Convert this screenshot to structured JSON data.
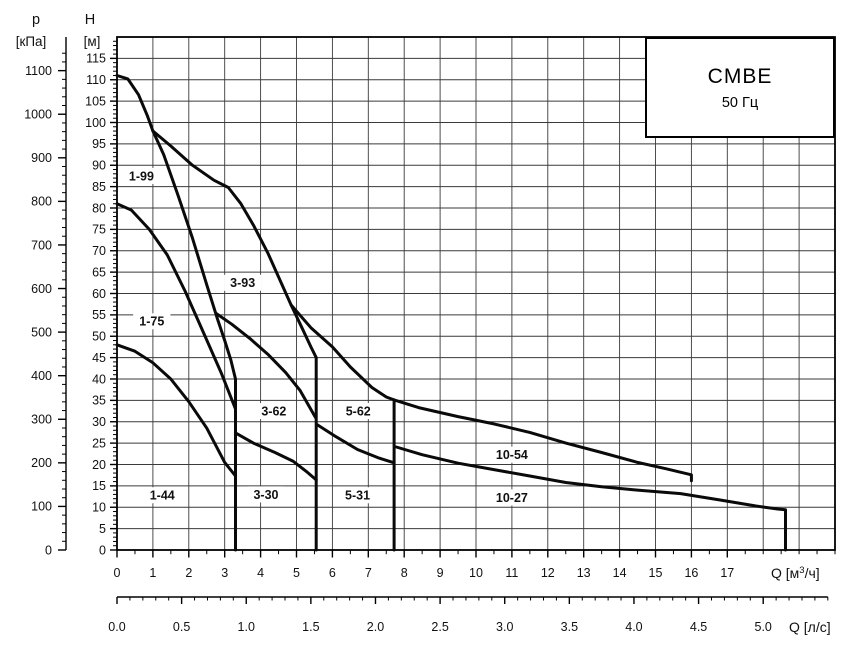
{
  "title": {
    "model": "CMBE",
    "frequency": "50 Гц"
  },
  "axes": {
    "pressure": {
      "symbol": "p",
      "unit": "[кПа]",
      "tick_labels": [
        0,
        100,
        200,
        300,
        400,
        500,
        600,
        700,
        800,
        900,
        1000,
        1100
      ]
    },
    "head": {
      "symbol": "H",
      "unit": "[м]",
      "tick_labels": [
        0,
        5,
        10,
        15,
        20,
        25,
        30,
        35,
        40,
        45,
        50,
        55,
        60,
        65,
        70,
        75,
        80,
        85,
        90,
        95,
        100,
        105,
        110,
        115
      ]
    },
    "flow_m3h": {
      "symbol": "Q",
      "unit_prefix": "[м",
      "unit_sup": "3",
      "unit_suffix": "/ч]",
      "tick_labels": [
        0,
        1,
        2,
        3,
        4,
        5,
        6,
        7,
        8,
        9,
        10,
        11,
        12,
        13,
        14,
        15,
        16,
        17
      ]
    },
    "flow_ls": {
      "symbol": "Q",
      "unit": "[л/с]",
      "tick_labels": [
        "0.0",
        "0.5",
        "1.0",
        "1.5",
        "2.0",
        "2.5",
        "3.0",
        "3.5",
        "4.0",
        "4.5",
        "5.0"
      ]
    }
  },
  "chart_data": {
    "type": "line",
    "title": "CMBE 50 Гц",
    "xlabel": "Q [м3/ч]",
    "x2label": "Q [л/с]",
    "ylabel": "H [м]",
    "y2label": "p [кПа]",
    "xlim": [
      0,
      20
    ],
    "ylim": [
      0,
      120
    ],
    "grid": {
      "x_step_m3h": 1,
      "y_step_m": 5,
      "on": true
    },
    "units": {
      "kpa_per_m": 9.81,
      "ls_per_m3h": 0.2778
    },
    "series": [
      {
        "name": "1-99",
        "points": [
          [
            0,
            111
          ],
          [
            0.3,
            110.2
          ],
          [
            0.6,
            106.5
          ],
          [
            0.85,
            101.5
          ],
          [
            1,
            98
          ],
          [
            1.3,
            92.5
          ],
          [
            1.7,
            83
          ],
          [
            2.1,
            73
          ],
          [
            2.5,
            62
          ],
          [
            2.8,
            54
          ],
          [
            3.0,
            49
          ],
          [
            3.17,
            44.5
          ],
          [
            3.3,
            40
          ],
          [
            3.3,
            0
          ]
        ]
      },
      {
        "name": "1-75",
        "points": [
          [
            0,
            81
          ],
          [
            0.4,
            79.5
          ],
          [
            0.9,
            75
          ],
          [
            1.4,
            69
          ],
          [
            1.9,
            60.5
          ],
          [
            2.4,
            51
          ],
          [
            2.9,
            41.5
          ],
          [
            3.3,
            33
          ]
        ]
      },
      {
        "name": "1-44",
        "points": [
          [
            0,
            48
          ],
          [
            0.5,
            46.5
          ],
          [
            1,
            43.8
          ],
          [
            1.5,
            40
          ],
          [
            2,
            34.7
          ],
          [
            2.5,
            28.5
          ],
          [
            3,
            20.5
          ],
          [
            3.3,
            17.3
          ]
        ]
      },
      {
        "name": "3-93",
        "points": [
          [
            1,
            98
          ],
          [
            1.5,
            94.5
          ],
          [
            2.1,
            90
          ],
          [
            2.7,
            86.5
          ],
          [
            3.1,
            84.8
          ],
          [
            3.45,
            81
          ],
          [
            3.8,
            76
          ],
          [
            4.2,
            69.5
          ],
          [
            4.6,
            62
          ],
          [
            4.85,
            57.3
          ],
          [
            5.15,
            52
          ],
          [
            5.4,
            47.5
          ],
          [
            5.55,
            45
          ],
          [
            5.55,
            0
          ]
        ]
      },
      {
        "name": "3-62",
        "points": [
          [
            2.77,
            55.3
          ],
          [
            3.2,
            52.8
          ],
          [
            3.7,
            49.5
          ],
          [
            4.2,
            45.8
          ],
          [
            4.7,
            41.5
          ],
          [
            5.1,
            37.3
          ],
          [
            5.53,
            31
          ]
        ]
      },
      {
        "name": "3-30",
        "points": [
          [
            3.3,
            27.4
          ],
          [
            3.8,
            25
          ],
          [
            4.4,
            22.8
          ],
          [
            4.9,
            20.8
          ],
          [
            5.3,
            18.2
          ],
          [
            5.55,
            16.4
          ]
        ]
      },
      {
        "name": "5-62",
        "points": [
          [
            4.85,
            57.3
          ],
          [
            5.4,
            52
          ],
          [
            6,
            47.5
          ],
          [
            6.5,
            42.8
          ],
          [
            7.1,
            38
          ],
          [
            7.5,
            35.8
          ],
          [
            7.72,
            35.1
          ],
          [
            7.72,
            0
          ]
        ]
      },
      {
        "name": "5-31",
        "points": [
          [
            5.58,
            29.3
          ],
          [
            6.1,
            26.5
          ],
          [
            6.7,
            23.5
          ],
          [
            7.3,
            21.5
          ],
          [
            7.72,
            20.4
          ]
        ]
      },
      {
        "name": "10-54",
        "points": [
          [
            7.72,
            35.1
          ],
          [
            8.4,
            33.3
          ],
          [
            9.5,
            31.2
          ],
          [
            10.5,
            29.5
          ],
          [
            11.5,
            27.5
          ],
          [
            12.5,
            25
          ],
          [
            13.5,
            22.8
          ],
          [
            14.5,
            20.5
          ],
          [
            15.3,
            19
          ],
          [
            16,
            17.6
          ],
          [
            16,
            16.2
          ]
        ]
      },
      {
        "name": "10-27",
        "points": [
          [
            7.78,
            24.1
          ],
          [
            8.5,
            22.3
          ],
          [
            9.5,
            20.3
          ],
          [
            10.5,
            18.8
          ],
          [
            11.5,
            17.3
          ],
          [
            12.5,
            15.8
          ],
          [
            13.5,
            14.8
          ],
          [
            14.5,
            14
          ],
          [
            15.7,
            13.2
          ],
          [
            16.8,
            11.7
          ],
          [
            17.8,
            10.3
          ],
          [
            18.4,
            9.6
          ],
          [
            18.62,
            9.4
          ],
          [
            18.62,
            0
          ]
        ]
      }
    ],
    "region_labels": [
      {
        "text": "1-99",
        "q": 0.68,
        "h": 87.5
      },
      {
        "text": "1-75",
        "q": 0.97,
        "h": 53.5
      },
      {
        "text": "1-44",
        "q": 1.26,
        "h": 12.8
      },
      {
        "text": "3-93",
        "q": 3.5,
        "h": 62.5
      },
      {
        "text": "3-62",
        "q": 4.37,
        "h": 32.5
      },
      {
        "text": "3-30",
        "q": 4.15,
        "h": 13.0
      },
      {
        "text": "5-62",
        "q": 6.72,
        "h": 32.5
      },
      {
        "text": "5-31",
        "q": 6.7,
        "h": 12.8
      },
      {
        "text": "10-54",
        "q": 11.0,
        "h": 22.3
      },
      {
        "text": "10-27",
        "q": 11.0,
        "h": 12.3
      }
    ],
    "colors": {
      "curve": "#0a0a0a",
      "grid": "#3a3a3a",
      "border": "#000000",
      "text": "#111111",
      "background": "#ffffff"
    }
  }
}
